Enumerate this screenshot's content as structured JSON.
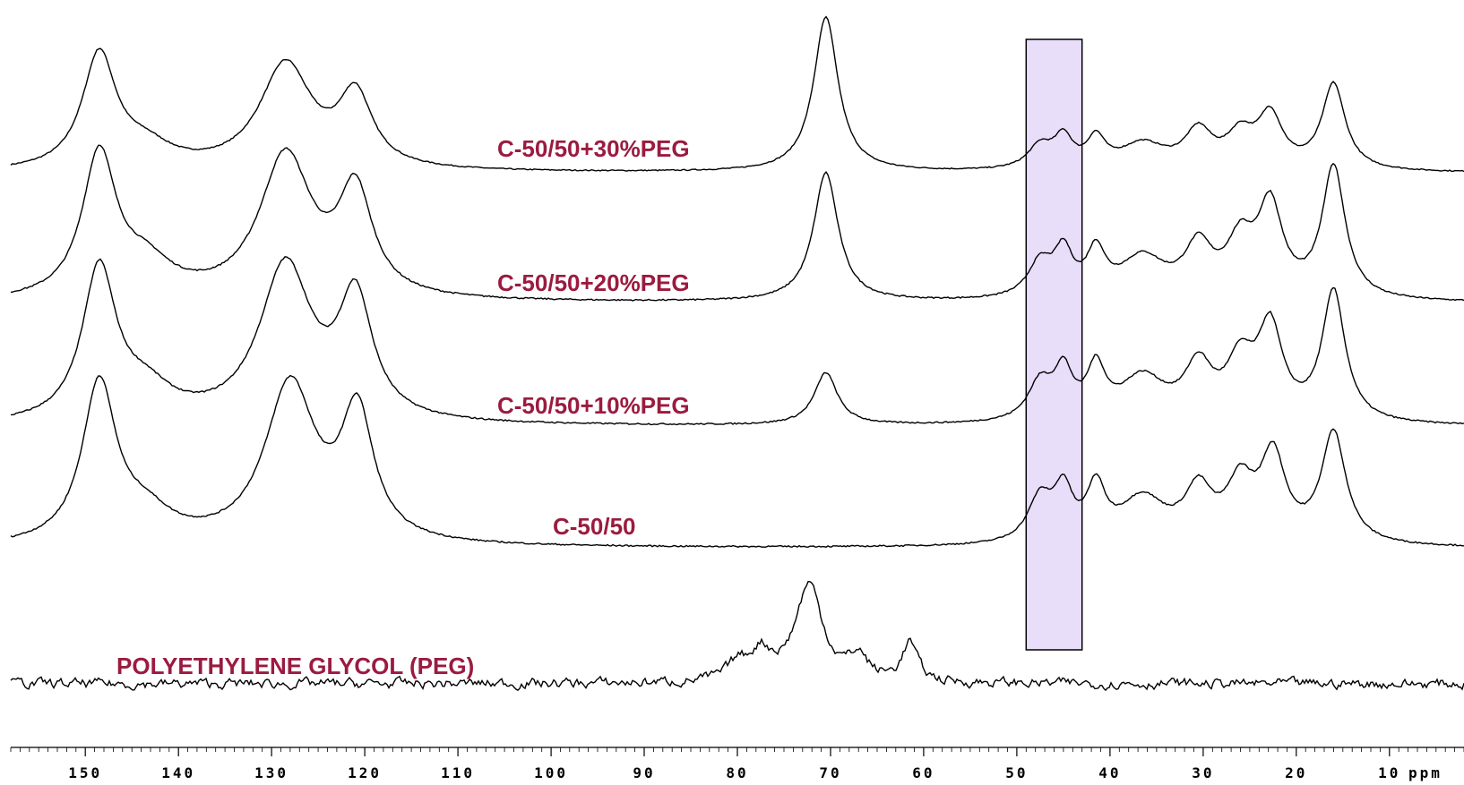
{
  "chart_data": {
    "type": "line",
    "title": "",
    "xlabel": "ppm",
    "xlim": [
      158,
      2
    ],
    "x_reversed": true,
    "xticks": [
      150,
      140,
      130,
      120,
      110,
      100,
      90,
      80,
      70,
      60,
      50,
      40,
      30,
      20,
      10
    ],
    "highlight_region_ppm": [
      43,
      49
    ],
    "highlight_color": "#e9defa",
    "label_color": "#9b1b3f",
    "series": [
      {
        "name": "C-50/50+30%PEG",
        "baseline": 0.02,
        "peaks": [
          {
            "ppm": 148.5,
            "h": 1.0,
            "w": 2.2
          },
          {
            "ppm": 143.5,
            "h": 0.18,
            "w": 3.5
          },
          {
            "ppm": 128.5,
            "h": 0.92,
            "w": 3.4
          },
          {
            "ppm": 121.0,
            "h": 0.62,
            "w": 2.2
          },
          {
            "ppm": 70.5,
            "h": 1.35,
            "w": 1.6
          },
          {
            "ppm": 47.5,
            "h": 0.2,
            "w": 1.6
          },
          {
            "ppm": 45.0,
            "h": 0.26,
            "w": 1.2
          },
          {
            "ppm": 41.5,
            "h": 0.25,
            "w": 1.2
          },
          {
            "ppm": 36.5,
            "h": 0.22,
            "w": 3.0
          },
          {
            "ppm": 30.5,
            "h": 0.32,
            "w": 1.8
          },
          {
            "ppm": 26.0,
            "h": 0.28,
            "w": 1.8
          },
          {
            "ppm": 22.8,
            "h": 0.45,
            "w": 1.6
          },
          {
            "ppm": 16.0,
            "h": 0.75,
            "w": 1.5
          }
        ]
      },
      {
        "name": "C-50/50+20%PEG",
        "baseline": 0.02,
        "peaks": [
          {
            "ppm": 148.5,
            "h": 1.0,
            "w": 2.2
          },
          {
            "ppm": 143.5,
            "h": 0.22,
            "w": 3.5
          },
          {
            "ppm": 128.5,
            "h": 1.0,
            "w": 3.4
          },
          {
            "ppm": 121.0,
            "h": 0.72,
            "w": 2.2
          },
          {
            "ppm": 70.5,
            "h": 0.9,
            "w": 1.6
          },
          {
            "ppm": 47.5,
            "h": 0.24,
            "w": 1.6
          },
          {
            "ppm": 45.0,
            "h": 0.3,
            "w": 1.2
          },
          {
            "ppm": 41.5,
            "h": 0.3,
            "w": 1.2
          },
          {
            "ppm": 36.5,
            "h": 0.28,
            "w": 3.0
          },
          {
            "ppm": 30.5,
            "h": 0.34,
            "w": 1.8
          },
          {
            "ppm": 26.0,
            "h": 0.36,
            "w": 1.8
          },
          {
            "ppm": 22.8,
            "h": 0.62,
            "w": 1.6
          },
          {
            "ppm": 16.0,
            "h": 0.92,
            "w": 1.5
          }
        ]
      },
      {
        "name": "C-50/50+10%PEG",
        "baseline": 0.02,
        "peaks": [
          {
            "ppm": 148.5,
            "h": 1.05,
            "w": 2.2
          },
          {
            "ppm": 143.5,
            "h": 0.2,
            "w": 3.5
          },
          {
            "ppm": 128.5,
            "h": 1.08,
            "w": 3.4
          },
          {
            "ppm": 121.0,
            "h": 0.82,
            "w": 2.2
          },
          {
            "ppm": 70.5,
            "h": 0.36,
            "w": 1.5
          },
          {
            "ppm": 47.5,
            "h": 0.26,
            "w": 1.6
          },
          {
            "ppm": 45.0,
            "h": 0.32,
            "w": 1.2
          },
          {
            "ppm": 41.5,
            "h": 0.34,
            "w": 1.2
          },
          {
            "ppm": 36.5,
            "h": 0.3,
            "w": 3.0
          },
          {
            "ppm": 30.5,
            "h": 0.36,
            "w": 1.8
          },
          {
            "ppm": 26.0,
            "h": 0.38,
            "w": 1.8
          },
          {
            "ppm": 22.8,
            "h": 0.62,
            "w": 1.6
          },
          {
            "ppm": 16.0,
            "h": 0.9,
            "w": 1.5
          }
        ]
      },
      {
        "name": "C-50/50",
        "baseline": 0.02,
        "peaks": [
          {
            "ppm": 148.5,
            "h": 1.08,
            "w": 2.2
          },
          {
            "ppm": 143.5,
            "h": 0.18,
            "w": 3.5
          },
          {
            "ppm": 128.0,
            "h": 1.08,
            "w": 3.3
          },
          {
            "ppm": 120.8,
            "h": 0.85,
            "w": 2.1
          },
          {
            "ppm": 47.5,
            "h": 0.3,
            "w": 1.6
          },
          {
            "ppm": 45.0,
            "h": 0.33,
            "w": 1.2
          },
          {
            "ppm": 41.5,
            "h": 0.35,
            "w": 1.2
          },
          {
            "ppm": 36.5,
            "h": 0.3,
            "w": 3.0
          },
          {
            "ppm": 30.5,
            "h": 0.34,
            "w": 1.8
          },
          {
            "ppm": 26.0,
            "h": 0.38,
            "w": 1.8
          },
          {
            "ppm": 22.5,
            "h": 0.57,
            "w": 1.6
          },
          {
            "ppm": 16.0,
            "h": 0.75,
            "w": 1.6
          }
        ]
      },
      {
        "name": "POLYETHYLENE GLYCOL (PEG)",
        "baseline": 0.0,
        "noise": 0.06,
        "peaks": [
          {
            "ppm": 80.0,
            "h": 0.12,
            "w": 1.2
          },
          {
            "ppm": 77.5,
            "h": 0.22,
            "w": 1.5
          },
          {
            "ppm": 72.3,
            "h": 0.75,
            "w": 1.8
          },
          {
            "ppm": 67.0,
            "h": 0.18,
            "w": 1.2
          },
          {
            "ppm": 61.5,
            "h": 0.3,
            "w": 1.0
          }
        ]
      }
    ]
  }
}
